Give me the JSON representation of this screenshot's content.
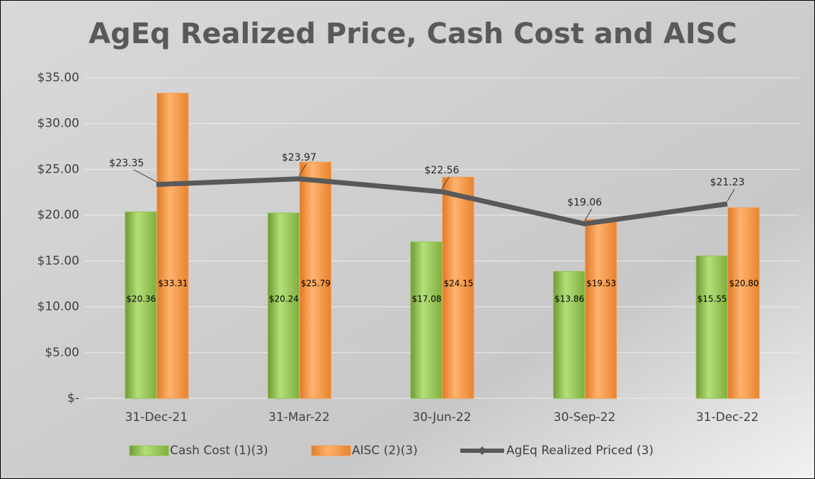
{
  "chart_data": {
    "type": "bar_line",
    "title": "AgEq Realized Price, Cash Cost and AISC",
    "categories": [
      "31-Dec-21",
      "31-Mar-22",
      "30-Jun-22",
      "30-Sep-22",
      "31-Dec-22"
    ],
    "series": [
      {
        "name": "Cash Cost (1)(3)",
        "type": "bar",
        "color": "#92c353",
        "values": [
          20.36,
          20.24,
          17.08,
          13.86,
          15.55
        ],
        "value_labels": [
          "$20.36",
          "$20.24",
          "$17.08",
          "$13.86",
          "$15.55"
        ]
      },
      {
        "name": "AISC (2)(3)",
        "type": "bar",
        "color": "#f7964a",
        "values": [
          33.31,
          25.79,
          24.15,
          19.53,
          20.8
        ],
        "value_labels": [
          "$33.31",
          "$25.79",
          "$24.15",
          "$19.53",
          "$20.80"
        ]
      },
      {
        "name": "AgEq Realized Priced (3)",
        "type": "line",
        "color": "#595959",
        "values": [
          23.35,
          23.97,
          22.56,
          19.06,
          21.23
        ],
        "value_labels": [
          "$23.35",
          "$23.97",
          "$22.56",
          "$19.06",
          "$21.23"
        ]
      }
    ],
    "ylim": [
      0,
      35
    ],
    "yticks": [
      {
        "value": 0,
        "label": "$-"
      },
      {
        "value": 5,
        "label": "$5.00"
      },
      {
        "value": 10,
        "label": "$10.00"
      },
      {
        "value": 15,
        "label": "$15.00"
      },
      {
        "value": 20,
        "label": "$20.00"
      },
      {
        "value": 25,
        "label": "$25.00"
      },
      {
        "value": 30,
        "label": "$30.00"
      },
      {
        "value": 35,
        "label": "$35.00"
      }
    ],
    "grid": true,
    "legend": "bottom"
  }
}
